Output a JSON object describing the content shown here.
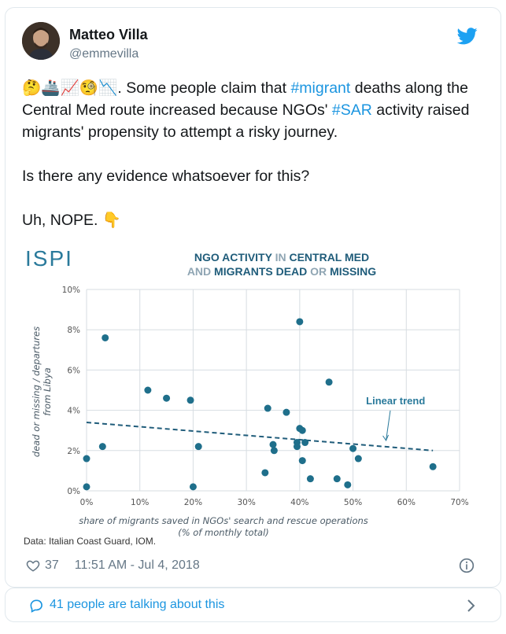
{
  "tweet": {
    "author_name": "Matteo Villa",
    "author_handle": "@emmevilla",
    "paragraph1_emoji": "🤔🚢📈🧐📉",
    "paragraph1_pre": ". Some people claim that ",
    "hashtag1": "#migrant",
    "paragraph1_mid": " deaths along the Central Med route increased because NGOs' ",
    "hashtag2": "#SAR",
    "paragraph1_post": " activity raised migrants' propensity to attempt a risky journey.",
    "paragraph2": "Is there any evidence whatsoever for this?",
    "paragraph3": "Uh, NOPE. ",
    "paragraph3_emoji": "👇",
    "likes": "37",
    "timestamp": "11:51 AM - Jul 4, 2018",
    "conversation": "41 people are talking about this"
  },
  "figure": {
    "logo": "ISPI",
    "title_line1_a": "NGO ACTIVITY ",
    "title_line1_b": "IN ",
    "title_line1_c": "CENTRAL MED",
    "title_line2_a": "AND ",
    "title_line2_b": "MIGRANTS DEAD ",
    "title_line2_c": "OR ",
    "title_line2_d": "MISSING",
    "source": "Data: Italian Coast Guard, IOM."
  },
  "chart_data": {
    "type": "scatter",
    "title": "NGO ACTIVITY IN CENTRAL MED AND MIGRANTS DEAD OR MISSING",
    "xlabel_line1": "share of migrants saved in NGOs' search and rescue operations",
    "xlabel_line2": "(% of monthly total)",
    "ylabel_line1": "dead or missing / departures",
    "ylabel_line2": "from Libya",
    "xlim": [
      0,
      70
    ],
    "ylim": [
      0,
      10
    ],
    "x_ticks": [
      "0%",
      "10%",
      "20%",
      "30%",
      "40%",
      "50%",
      "60%",
      "70%"
    ],
    "y_ticks": [
      "0%",
      "2%",
      "4%",
      "6%",
      "8%",
      "10%"
    ],
    "annotation": "Linear trend",
    "trend": {
      "x": [
        0,
        65
      ],
      "y": [
        3.4,
        2.0
      ]
    },
    "points": [
      {
        "x": 0,
        "y": 0.2
      },
      {
        "x": 0,
        "y": 1.6
      },
      {
        "x": 3,
        "y": 2.2
      },
      {
        "x": 3.5,
        "y": 7.6
      },
      {
        "x": 11.5,
        "y": 5.0
      },
      {
        "x": 15,
        "y": 4.6
      },
      {
        "x": 19.5,
        "y": 4.5
      },
      {
        "x": 20,
        "y": 0.2
      },
      {
        "x": 21,
        "y": 2.2
      },
      {
        "x": 33.5,
        "y": 0.9
      },
      {
        "x": 34,
        "y": 4.1
      },
      {
        "x": 35,
        "y": 2.3
      },
      {
        "x": 35.2,
        "y": 2.0
      },
      {
        "x": 37.5,
        "y": 3.9
      },
      {
        "x": 39.5,
        "y": 2.4
      },
      {
        "x": 39.5,
        "y": 2.2
      },
      {
        "x": 40,
        "y": 8.4
      },
      {
        "x": 40,
        "y": 3.1
      },
      {
        "x": 40.5,
        "y": 3.0
      },
      {
        "x": 40.5,
        "y": 1.5
      },
      {
        "x": 41,
        "y": 2.4
      },
      {
        "x": 42,
        "y": 0.6
      },
      {
        "x": 45.5,
        "y": 5.4
      },
      {
        "x": 47,
        "y": 0.6
      },
      {
        "x": 49,
        "y": 0.3
      },
      {
        "x": 50,
        "y": 2.1
      },
      {
        "x": 51,
        "y": 1.6
      },
      {
        "x": 65,
        "y": 1.2
      }
    ]
  }
}
